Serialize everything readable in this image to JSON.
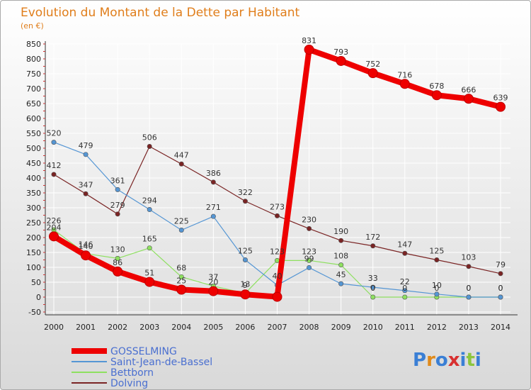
{
  "chart_data": {
    "type": "line",
    "title": "Evolution du Montant de la Dette par Habitant",
    "subtitle": "(en €)",
    "xlabel": "",
    "ylabel": "",
    "ylim": [
      -50,
      850
    ],
    "yticks": [
      -50,
      0,
      50,
      100,
      150,
      200,
      250,
      300,
      350,
      400,
      450,
      500,
      550,
      600,
      650,
      700,
      750,
      800,
      850
    ],
    "x": [
      2000,
      2001,
      2002,
      2003,
      2004,
      2005,
      2006,
      2007,
      2008,
      2009,
      2010,
      2011,
      2012,
      2013,
      2014
    ],
    "series": [
      {
        "name": "GOSSELMING",
        "color": "#ee0000",
        "values": [
          204,
          140,
          86,
          51,
          25,
          20,
          9,
          1,
          831,
          793,
          752,
          716,
          678,
          666,
          639
        ],
        "labels": [
          "204",
          "140",
          "86",
          "51",
          "25",
          "20",
          "9",
          "",
          "831",
          "793",
          "752",
          "716",
          "678",
          "666",
          "639"
        ]
      },
      {
        "name": "Saint-Jean-de-Bassel",
        "color": "#5596d4",
        "values": [
          520,
          479,
          361,
          294,
          225,
          271,
          125,
          40,
          99,
          45,
          33,
          22,
          10,
          0,
          0
        ],
        "labels": [
          "520",
          "479",
          "361",
          "294",
          "225",
          "271",
          "125",
          "40",
          "99",
          "45",
          "33",
          "22",
          "10",
          "0",
          "0"
        ]
      },
      {
        "name": "Bettborn",
        "color": "#8ee060",
        "values": [
          226,
          146,
          130,
          165,
          68,
          37,
          13,
          123,
          123,
          108,
          0,
          0,
          0,
          0,
          0
        ],
        "labels": [
          "226",
          "146",
          "130",
          "165",
          "68",
          "37",
          "13",
          "123",
          "123",
          "108",
          "0",
          "0",
          "0",
          "0",
          "0"
        ]
      },
      {
        "name": "Dolving",
        "color": "#7a2424",
        "values": [
          412,
          347,
          279,
          506,
          447,
          386,
          322,
          273,
          230,
          190,
          172,
          147,
          125,
          103,
          79
        ],
        "labels": [
          "412",
          "347",
          "279",
          "506",
          "447",
          "386",
          "322",
          "273",
          "230",
          "190",
          "172",
          "147",
          "125",
          "103",
          "79"
        ]
      }
    ],
    "legend_position": "bottom-left"
  },
  "logo": {
    "text": "Proxiti"
  }
}
